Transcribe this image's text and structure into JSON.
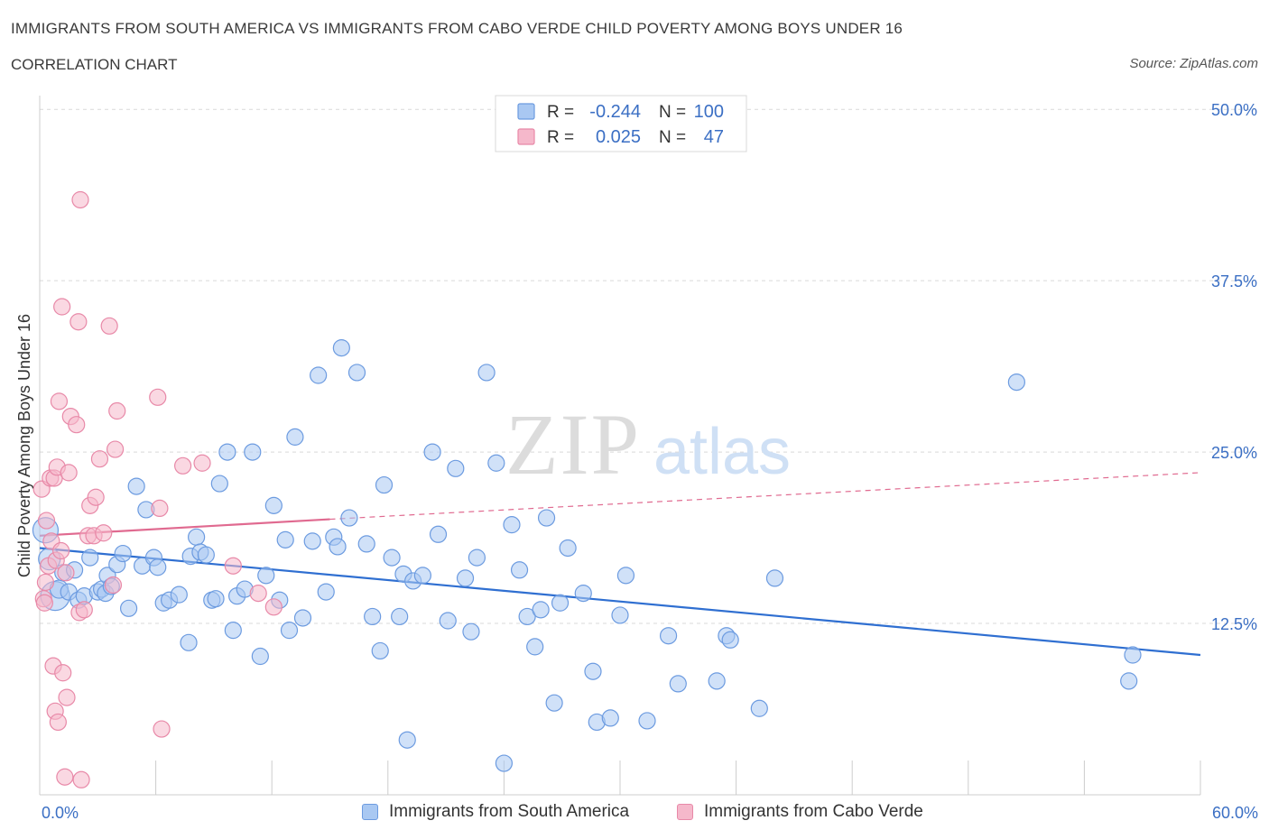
{
  "title": "IMMIGRANTS FROM SOUTH AMERICA VS IMMIGRANTS FROM CABO VERDE CHILD POVERTY AMONG BOYS UNDER 16",
  "subtitle": "CORRELATION CHART",
  "source": "Source: ZipAtlas.com",
  "watermark": {
    "zip": "ZIP",
    "atlas": "atlas"
  },
  "legend_top": [
    {
      "r_label": "R =",
      "r_value": "-0.244",
      "n_label": "N =",
      "n_value": "100"
    },
    {
      "r_label": "R =",
      "r_value": "0.025",
      "n_label": "N =",
      "n_value": "47"
    }
  ],
  "colors": {
    "blue_fill": "#a9c8f2",
    "blue_stroke": "#6c9be0",
    "blue_line": "#2f6fd1",
    "pink_fill": "#f5b8cb",
    "pink_stroke": "#e889a8",
    "pink_line": "#e06a90",
    "tick_text": "#3b6fc4",
    "grid": "#d9d9d9"
  },
  "chart_data": {
    "type": "scatter",
    "title": "IMMIGRANTS FROM SOUTH AMERICA VS IMMIGRANTS FROM CABO VERDE CHILD POVERTY AMONG BOYS UNDER 16",
    "subtitle": "CORRELATION CHART",
    "xlabel": "",
    "ylabel": "Child Poverty Among Boys Under 16",
    "xlim": [
      0,
      60
    ],
    "ylim": [
      0,
      51
    ],
    "x_tick_labels": [
      "0.0%",
      "60.0%"
    ],
    "y_ticks": [
      {
        "value": 12.5,
        "label": "12.5%"
      },
      {
        "value": 25.0,
        "label": "25.0%"
      },
      {
        "value": 37.5,
        "label": "37.5%"
      },
      {
        "value": 50.0,
        "label": "50.0%"
      }
    ],
    "grid": true,
    "legend_position": "top-center",
    "series": [
      {
        "name": "Immigrants from South America",
        "color": "#a9c8f2",
        "R": -0.244,
        "N": 100,
        "trend": {
          "x": [
            0,
            60
          ],
          "y": [
            18.0,
            10.2
          ],
          "style": "solid"
        },
        "points": [
          {
            "x": 0.3,
            "y": 19.3,
            "s": 14
          },
          {
            "x": 0.5,
            "y": 17.2,
            "s": 12
          },
          {
            "x": 0.8,
            "y": 14.5,
            "s": 16
          },
          {
            "x": 1.0,
            "y": 15.0,
            "s": 10
          },
          {
            "x": 1.2,
            "y": 16.2,
            "s": 9
          },
          {
            "x": 1.5,
            "y": 14.8,
            "s": 9
          },
          {
            "x": 1.8,
            "y": 16.4,
            "s": 9
          },
          {
            "x": 2.0,
            "y": 14.2,
            "s": 9
          },
          {
            "x": 2.3,
            "y": 14.5,
            "s": 9
          },
          {
            "x": 2.6,
            "y": 17.3,
            "s": 9
          },
          {
            "x": 3.0,
            "y": 14.8,
            "s": 9
          },
          {
            "x": 3.2,
            "y": 15.0,
            "s": 9
          },
          {
            "x": 3.4,
            "y": 14.7,
            "s": 9
          },
          {
            "x": 3.5,
            "y": 16.0,
            "s": 9
          },
          {
            "x": 3.7,
            "y": 15.2,
            "s": 9
          },
          {
            "x": 4.0,
            "y": 16.8,
            "s": 9
          },
          {
            "x": 4.3,
            "y": 17.6,
            "s": 9
          },
          {
            "x": 4.6,
            "y": 13.6,
            "s": 9
          },
          {
            "x": 5.0,
            "y": 22.5,
            "s": 9
          },
          {
            "x": 5.3,
            "y": 16.7,
            "s": 9
          },
          {
            "x": 5.5,
            "y": 20.8,
            "s": 9
          },
          {
            "x": 5.9,
            "y": 17.3,
            "s": 9
          },
          {
            "x": 6.1,
            "y": 16.6,
            "s": 9
          },
          {
            "x": 6.4,
            "y": 14.0,
            "s": 9
          },
          {
            "x": 6.7,
            "y": 14.2,
            "s": 9
          },
          {
            "x": 7.2,
            "y": 14.6,
            "s": 9
          },
          {
            "x": 7.7,
            "y": 11.1,
            "s": 9
          },
          {
            "x": 7.8,
            "y": 17.4,
            "s": 9
          },
          {
            "x": 8.1,
            "y": 18.8,
            "s": 9
          },
          {
            "x": 8.3,
            "y": 17.7,
            "s": 9
          },
          {
            "x": 8.6,
            "y": 17.5,
            "s": 9
          },
          {
            "x": 8.9,
            "y": 14.2,
            "s": 9
          },
          {
            "x": 9.1,
            "y": 14.3,
            "s": 9
          },
          {
            "x": 9.3,
            "y": 22.7,
            "s": 9
          },
          {
            "x": 9.7,
            "y": 25.0,
            "s": 9
          },
          {
            "x": 10.0,
            "y": 12.0,
            "s": 9
          },
          {
            "x": 10.2,
            "y": 14.5,
            "s": 9
          },
          {
            "x": 10.6,
            "y": 15.0,
            "s": 9
          },
          {
            "x": 11.0,
            "y": 25.0,
            "s": 9
          },
          {
            "x": 11.4,
            "y": 10.1,
            "s": 9
          },
          {
            "x": 11.7,
            "y": 16.0,
            "s": 9
          },
          {
            "x": 12.1,
            "y": 21.1,
            "s": 9
          },
          {
            "x": 12.4,
            "y": 14.2,
            "s": 9
          },
          {
            "x": 12.7,
            "y": 18.6,
            "s": 9
          },
          {
            "x": 12.9,
            "y": 12.0,
            "s": 9
          },
          {
            "x": 13.2,
            "y": 26.1,
            "s": 9
          },
          {
            "x": 13.6,
            "y": 12.9,
            "s": 9
          },
          {
            "x": 14.1,
            "y": 18.5,
            "s": 9
          },
          {
            "x": 14.4,
            "y": 30.6,
            "s": 9
          },
          {
            "x": 14.8,
            "y": 14.8,
            "s": 9
          },
          {
            "x": 15.2,
            "y": 18.8,
            "s": 9
          },
          {
            "x": 15.4,
            "y": 18.1,
            "s": 9
          },
          {
            "x": 15.6,
            "y": 32.6,
            "s": 9
          },
          {
            "x": 16.0,
            "y": 20.2,
            "s": 9
          },
          {
            "x": 16.4,
            "y": 30.8,
            "s": 9
          },
          {
            "x": 16.9,
            "y": 18.3,
            "s": 9
          },
          {
            "x": 17.2,
            "y": 13.0,
            "s": 9
          },
          {
            "x": 17.6,
            "y": 10.5,
            "s": 9
          },
          {
            "x": 17.8,
            "y": 22.6,
            "s": 9
          },
          {
            "x": 18.2,
            "y": 17.3,
            "s": 9
          },
          {
            "x": 18.6,
            "y": 13.0,
            "s": 9
          },
          {
            "x": 18.8,
            "y": 16.1,
            "s": 9
          },
          {
            "x": 19.0,
            "y": 4.0,
            "s": 9
          },
          {
            "x": 19.3,
            "y": 15.6,
            "s": 9
          },
          {
            "x": 19.8,
            "y": 16.0,
            "s": 9
          },
          {
            "x": 20.3,
            "y": 25.0,
            "s": 9
          },
          {
            "x": 20.6,
            "y": 19.0,
            "s": 9
          },
          {
            "x": 21.1,
            "y": 12.7,
            "s": 9
          },
          {
            "x": 21.5,
            "y": 23.8,
            "s": 9
          },
          {
            "x": 22.0,
            "y": 15.8,
            "s": 9
          },
          {
            "x": 22.3,
            "y": 11.9,
            "s": 9
          },
          {
            "x": 22.6,
            "y": 17.3,
            "s": 9
          },
          {
            "x": 23.1,
            "y": 30.8,
            "s": 9
          },
          {
            "x": 23.6,
            "y": 24.2,
            "s": 9
          },
          {
            "x": 24.0,
            "y": 2.3,
            "s": 9
          },
          {
            "x": 24.4,
            "y": 19.7,
            "s": 9
          },
          {
            "x": 24.8,
            "y": 16.4,
            "s": 9
          },
          {
            "x": 25.2,
            "y": 13.0,
            "s": 9
          },
          {
            "x": 25.6,
            "y": 10.8,
            "s": 9
          },
          {
            "x": 25.9,
            "y": 13.5,
            "s": 9
          },
          {
            "x": 26.2,
            "y": 20.2,
            "s": 9
          },
          {
            "x": 26.6,
            "y": 6.7,
            "s": 9
          },
          {
            "x": 26.9,
            "y": 14.0,
            "s": 9
          },
          {
            "x": 27.3,
            "y": 18.0,
            "s": 9
          },
          {
            "x": 28.1,
            "y": 14.7,
            "s": 9
          },
          {
            "x": 28.6,
            "y": 9.0,
            "s": 9
          },
          {
            "x": 28.8,
            "y": 5.3,
            "s": 9
          },
          {
            "x": 29.5,
            "y": 5.6,
            "s": 9
          },
          {
            "x": 30.0,
            "y": 13.1,
            "s": 9
          },
          {
            "x": 30.3,
            "y": 16.0,
            "s": 9
          },
          {
            "x": 31.4,
            "y": 5.4,
            "s": 9
          },
          {
            "x": 32.5,
            "y": 11.6,
            "s": 9
          },
          {
            "x": 33.0,
            "y": 8.1,
            "s": 9
          },
          {
            "x": 35.0,
            "y": 8.3,
            "s": 9
          },
          {
            "x": 35.5,
            "y": 11.6,
            "s": 9
          },
          {
            "x": 35.7,
            "y": 11.3,
            "s": 9
          },
          {
            "x": 37.2,
            "y": 6.3,
            "s": 9
          },
          {
            "x": 38.0,
            "y": 15.8,
            "s": 9
          },
          {
            "x": 50.5,
            "y": 30.1,
            "s": 9
          },
          {
            "x": 56.5,
            "y": 10.2,
            "s": 9
          },
          {
            "x": 56.3,
            "y": 8.3,
            "s": 9
          }
        ]
      },
      {
        "name": "Immigrants from Cabo Verde",
        "color": "#f5b8cb",
        "R": 0.025,
        "N": 47,
        "trend": {
          "x": [
            0,
            15
          ],
          "y": [
            18.9,
            20.1
          ],
          "style": "solid",
          "extension": {
            "x": [
              15,
              60
            ],
            "y": [
              20.1,
              23.5
            ],
            "style": "dashed"
          }
        },
        "points": [
          {
            "x": 0.1,
            "y": 22.3,
            "s": 9
          },
          {
            "x": 0.2,
            "y": 14.3,
            "s": 9
          },
          {
            "x": 0.3,
            "y": 15.5,
            "s": 9
          },
          {
            "x": 0.35,
            "y": 20.0,
            "s": 9
          },
          {
            "x": 0.45,
            "y": 16.7,
            "s": 9
          },
          {
            "x": 0.55,
            "y": 23.1,
            "s": 9
          },
          {
            "x": 0.6,
            "y": 18.5,
            "s": 9
          },
          {
            "x": 0.7,
            "y": 9.4,
            "s": 9
          },
          {
            "x": 0.75,
            "y": 23.1,
            "s": 9
          },
          {
            "x": 0.8,
            "y": 6.1,
            "s": 9
          },
          {
            "x": 0.85,
            "y": 17.1,
            "s": 9
          },
          {
            "x": 0.9,
            "y": 23.9,
            "s": 9
          },
          {
            "x": 0.95,
            "y": 5.3,
            "s": 9
          },
          {
            "x": 1.0,
            "y": 28.7,
            "s": 9
          },
          {
            "x": 1.1,
            "y": 17.8,
            "s": 9
          },
          {
            "x": 1.15,
            "y": 35.6,
            "s": 9
          },
          {
            "x": 1.2,
            "y": 8.9,
            "s": 9
          },
          {
            "x": 1.3,
            "y": 1.3,
            "s": 9
          },
          {
            "x": 1.35,
            "y": 16.2,
            "s": 9
          },
          {
            "x": 1.4,
            "y": 7.1,
            "s": 9
          },
          {
            "x": 1.5,
            "y": 23.5,
            "s": 9
          },
          {
            "x": 1.6,
            "y": 27.6,
            "s": 9
          },
          {
            "x": 1.9,
            "y": 27.0,
            "s": 9
          },
          {
            "x": 2.0,
            "y": 34.5,
            "s": 9
          },
          {
            "x": 2.05,
            "y": 13.3,
            "s": 9
          },
          {
            "x": 2.1,
            "y": 43.4,
            "s": 9
          },
          {
            "x": 2.15,
            "y": 1.1,
            "s": 9
          },
          {
            "x": 2.3,
            "y": 13.5,
            "s": 9
          },
          {
            "x": 2.5,
            "y": 18.9,
            "s": 9
          },
          {
            "x": 2.6,
            "y": 21.1,
            "s": 9
          },
          {
            "x": 2.8,
            "y": 18.9,
            "s": 9
          },
          {
            "x": 2.9,
            "y": 21.7,
            "s": 9
          },
          {
            "x": 3.1,
            "y": 24.5,
            "s": 9
          },
          {
            "x": 3.3,
            "y": 19.1,
            "s": 9
          },
          {
            "x": 3.6,
            "y": 34.2,
            "s": 9
          },
          {
            "x": 3.9,
            "y": 25.2,
            "s": 9
          },
          {
            "x": 4.0,
            "y": 28.0,
            "s": 9
          },
          {
            "x": 3.8,
            "y": 15.3,
            "s": 9
          },
          {
            "x": 6.1,
            "y": 29.0,
            "s": 9
          },
          {
            "x": 6.2,
            "y": 20.9,
            "s": 9
          },
          {
            "x": 6.3,
            "y": 4.8,
            "s": 9
          },
          {
            "x": 7.4,
            "y": 24.0,
            "s": 9
          },
          {
            "x": 8.4,
            "y": 24.2,
            "s": 9
          },
          {
            "x": 10.0,
            "y": 16.7,
            "s": 9
          },
          {
            "x": 11.3,
            "y": 14.7,
            "s": 9
          },
          {
            "x": 12.1,
            "y": 13.7,
            "s": 9
          },
          {
            "x": 0.25,
            "y": 14.0,
            "s": 9
          }
        ]
      }
    ]
  },
  "legend_bottom": [
    {
      "label": "Immigrants from South America"
    },
    {
      "label": "Immigrants from Cabo Verde"
    }
  ]
}
